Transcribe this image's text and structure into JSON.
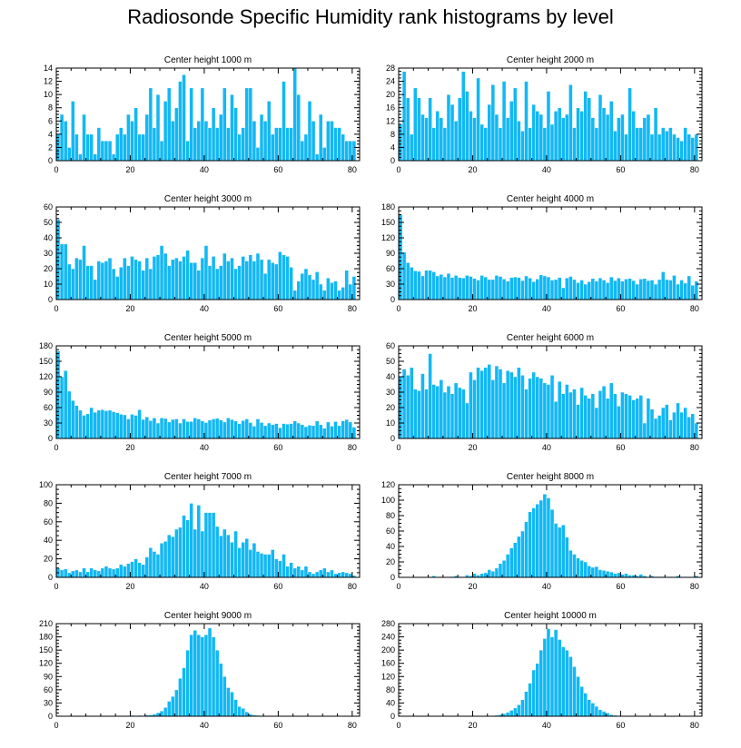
{
  "title": "Radiosonde Specific Humidity rank histograms by level",
  "colors": {
    "bar": "#12b8f4",
    "bar_edge": "#ffffff",
    "axis": "#000000"
  },
  "chart_data": [
    {
      "type": "bar",
      "title": "Center height 1000 m",
      "xlim": [
        0,
        82
      ],
      "ylim": [
        0,
        14
      ],
      "xticks": [
        0,
        20,
        40,
        60,
        80
      ],
      "yticks": [
        0,
        2,
        4,
        6,
        8,
        10,
        12,
        14
      ],
      "values": [
        4,
        7,
        6,
        2,
        9,
        4,
        1,
        7,
        4,
        4,
        1,
        5,
        3,
        3,
        3,
        1,
        4,
        5,
        4,
        7,
        6,
        8,
        4,
        4,
        7,
        11,
        5,
        10,
        3,
        9,
        11,
        6,
        8,
        12,
        13,
        3,
        11,
        5,
        6,
        11,
        6,
        5,
        8,
        5,
        7,
        11,
        5,
        10,
        8,
        4,
        5,
        11,
        11,
        6,
        2,
        7,
        6,
        9,
        4,
        5,
        5,
        12,
        5,
        5,
        14,
        10,
        3,
        4,
        9,
        6,
        1,
        7,
        2,
        6,
        6,
        5,
        5,
        4,
        3,
        3,
        3
      ]
    },
    {
      "type": "bar",
      "title": "Center height 2000 m",
      "xlim": [
        0,
        82
      ],
      "ylim": [
        0,
        28
      ],
      "xticks": [
        0,
        20,
        40,
        60,
        80
      ],
      "yticks": [
        0,
        4,
        8,
        12,
        16,
        20,
        24,
        28
      ],
      "values": [
        11,
        27,
        19,
        8,
        22,
        19,
        14,
        13,
        19,
        10,
        15,
        13,
        10,
        20,
        17,
        12,
        19,
        27,
        21,
        15,
        13,
        25,
        11,
        10,
        17,
        23,
        14,
        10,
        24,
        13,
        18,
        22,
        12,
        9,
        24,
        10,
        17,
        15,
        14,
        10,
        21,
        11,
        15,
        16,
        13,
        14,
        23,
        10,
        16,
        15,
        21,
        19,
        13,
        10,
        20,
        16,
        14,
        18,
        9,
        13,
        14,
        8,
        22,
        15,
        10,
        10,
        13,
        14,
        8,
        16,
        8,
        10,
        9,
        10,
        8,
        7,
        6,
        10,
        8,
        7,
        8
      ]
    },
    {
      "type": "bar",
      "title": "Center height 3000 m",
      "xlim": [
        0,
        82
      ],
      "ylim": [
        0,
        60
      ],
      "xticks": [
        0,
        20,
        40,
        60,
        80
      ],
      "yticks": [
        0,
        10,
        20,
        30,
        40,
        50,
        60
      ],
      "values": [
        52,
        36,
        36,
        23,
        20,
        27,
        26,
        35,
        22,
        22,
        13,
        25,
        24,
        25,
        27,
        20,
        15,
        21,
        27,
        22,
        28,
        26,
        25,
        19,
        27,
        20,
        28,
        29,
        35,
        30,
        22,
        26,
        27,
        25,
        28,
        32,
        24,
        24,
        19,
        27,
        35,
        22,
        28,
        20,
        22,
        30,
        25,
        27,
        20,
        22,
        28,
        25,
        29,
        25,
        30,
        26,
        17,
        26,
        24,
        23,
        31,
        29,
        28,
        21,
        6,
        12,
        17,
        20,
        16,
        13,
        18,
        10,
        6,
        14,
        11,
        12,
        6,
        8,
        19,
        10,
        15
      ]
    },
    {
      "type": "bar",
      "title": "Center height 4000 m",
      "xlim": [
        0,
        82
      ],
      "ylim": [
        0,
        180
      ],
      "xticks": [
        0,
        20,
        40,
        60,
        80
      ],
      "yticks": [
        0,
        30,
        60,
        90,
        120,
        150,
        180
      ],
      "values": [
        165,
        92,
        72,
        63,
        56,
        55,
        46,
        57,
        57,
        54,
        46,
        49,
        44,
        51,
        43,
        47,
        43,
        42,
        47,
        45,
        41,
        38,
        47,
        44,
        39,
        39,
        47,
        45,
        40,
        36,
        43,
        44,
        43,
        37,
        46,
        42,
        35,
        40,
        48,
        46,
        44,
        38,
        39,
        43,
        23,
        42,
        45,
        39,
        33,
        38,
        30,
        35,
        41,
        36,
        42,
        38,
        33,
        44,
        37,
        42,
        36,
        40,
        41,
        37,
        30,
        40,
        41,
        37,
        38,
        30,
        39,
        54,
        39,
        38,
        47,
        30,
        38,
        32,
        46,
        28,
        36
      ]
    },
    {
      "type": "bar",
      "title": "Center height 5000 m",
      "xlim": [
        0,
        82
      ],
      "ylim": [
        0,
        180
      ],
      "xticks": [
        0,
        20,
        40,
        60,
        80
      ],
      "yticks": [
        0,
        30,
        60,
        90,
        120,
        150,
        180
      ],
      "values": [
        170,
        120,
        132,
        92,
        74,
        64,
        55,
        45,
        48,
        60,
        51,
        55,
        56,
        54,
        55,
        52,
        50,
        47,
        46,
        38,
        47,
        45,
        56,
        37,
        42,
        35,
        40,
        30,
        40,
        39,
        32,
        37,
        38,
        30,
        38,
        33,
        33,
        40,
        38,
        34,
        31,
        36,
        38,
        39,
        36,
        32,
        40,
        37,
        34,
        29,
        35,
        38,
        31,
        24,
        38,
        31,
        25,
        30,
        27,
        29,
        21,
        29,
        28,
        29,
        34,
        30,
        27,
        23,
        26,
        25,
        34,
        27,
        20,
        32,
        24,
        33,
        25,
        34,
        37,
        32,
        22
      ]
    },
    {
      "type": "bar",
      "title": "Center height 6000 m",
      "xlim": [
        0,
        82
      ],
      "ylim": [
        0,
        60
      ],
      "xticks": [
        0,
        20,
        40,
        60,
        80
      ],
      "yticks": [
        0,
        10,
        20,
        30,
        40,
        50,
        60
      ],
      "values": [
        40,
        45,
        41,
        46,
        32,
        31,
        42,
        32,
        55,
        35,
        34,
        38,
        30,
        34,
        29,
        36,
        33,
        32,
        23,
        43,
        38,
        46,
        44,
        46,
        48,
        38,
        47,
        45,
        36,
        44,
        43,
        40,
        46,
        41,
        32,
        39,
        43,
        40,
        39,
        36,
        35,
        41,
        24,
        37,
        29,
        35,
        30,
        32,
        22,
        33,
        28,
        26,
        29,
        20,
        31,
        34,
        26,
        36,
        29,
        21,
        30,
        29,
        28,
        25,
        26,
        28,
        10,
        26,
        19,
        13,
        15,
        20,
        22,
        12,
        17,
        23,
        17,
        20,
        14,
        16,
        10
      ]
    },
    {
      "type": "bar",
      "title": "Center height 7000 m",
      "xlim": [
        0,
        82
      ],
      "ylim": [
        0,
        100
      ],
      "xticks": [
        0,
        20,
        40,
        60,
        80
      ],
      "yticks": [
        0,
        20,
        40,
        60,
        80,
        100
      ],
      "values": [
        10,
        8,
        9,
        5,
        7,
        8,
        6,
        10,
        6,
        10,
        8,
        7,
        10,
        12,
        10,
        9,
        10,
        14,
        12,
        15,
        17,
        20,
        16,
        14,
        22,
        32,
        28,
        25,
        37,
        39,
        46,
        44,
        52,
        54,
        67,
        62,
        80,
        52,
        78,
        50,
        70,
        70,
        70,
        55,
        45,
        52,
        46,
        38,
        50,
        32,
        38,
        42,
        30,
        37,
        28,
        26,
        25,
        25,
        30,
        20,
        18,
        25,
        12,
        16,
        10,
        12,
        8,
        12,
        6,
        4,
        6,
        8,
        10,
        6,
        8,
        4,
        5,
        6,
        5,
        4,
        2
      ]
    },
    {
      "type": "bar",
      "title": "Center height 8000 m",
      "xlim": [
        0,
        82
      ],
      "ylim": [
        0,
        120
      ],
      "xticks": [
        0,
        20,
        40,
        60,
        80
      ],
      "yticks": [
        0,
        20,
        40,
        60,
        80,
        100,
        120
      ],
      "values": [
        0,
        0,
        0,
        0,
        0,
        0,
        0,
        0,
        0,
        2,
        0,
        1,
        0,
        0,
        1,
        2,
        1,
        0,
        3,
        2,
        5,
        3,
        5,
        6,
        10,
        8,
        12,
        18,
        22,
        30,
        38,
        45,
        53,
        60,
        72,
        85,
        90,
        95,
        100,
        108,
        103,
        88,
        70,
        65,
        68,
        52,
        35,
        30,
        25,
        22,
        20,
        15,
        13,
        14,
        10,
        9,
        8,
        7,
        5,
        6,
        4,
        5,
        3,
        3,
        2,
        4,
        2,
        1,
        2,
        1,
        1,
        1,
        0,
        1,
        0,
        2,
        0,
        1,
        0,
        0,
        2
      ]
    },
    {
      "type": "bar",
      "title": "Center height 9000 m",
      "xlim": [
        0,
        82
      ],
      "ylim": [
        0,
        210
      ],
      "xticks": [
        0,
        20,
        40,
        60,
        80
      ],
      "yticks": [
        0,
        30,
        60,
        90,
        120,
        150,
        180,
        210
      ],
      "values": [
        0,
        0,
        0,
        0,
        0,
        0,
        0,
        0,
        0,
        0,
        0,
        0,
        0,
        0,
        0,
        0,
        0,
        0,
        0,
        0,
        2,
        0,
        2,
        0,
        3,
        3,
        5,
        8,
        12,
        20,
        34,
        45,
        60,
        86,
        110,
        150,
        185,
        195,
        185,
        180,
        185,
        200,
        180,
        150,
        120,
        90,
        65,
        55,
        38,
        22,
        18,
        10,
        5,
        3,
        2,
        1,
        0,
        0,
        0,
        0,
        0,
        0,
        0,
        0,
        0,
        0,
        0,
        0,
        0,
        0,
        0,
        0,
        0,
        0,
        0,
        0,
        0,
        0,
        0,
        0,
        0
      ]
    },
    {
      "type": "bar",
      "title": "Center height 10000 m",
      "xlim": [
        0,
        82
      ],
      "ylim": [
        0,
        280
      ],
      "xticks": [
        0,
        20,
        40,
        60,
        80
      ],
      "yticks": [
        0,
        40,
        80,
        120,
        160,
        200,
        240,
        280
      ],
      "values": [
        0,
        0,
        0,
        0,
        0,
        0,
        0,
        0,
        0,
        0,
        0,
        0,
        0,
        0,
        0,
        0,
        0,
        0,
        0,
        0,
        0,
        0,
        0,
        0,
        0,
        2,
        3,
        5,
        8,
        12,
        18,
        25,
        35,
        50,
        75,
        100,
        140,
        160,
        200,
        235,
        265,
        240,
        262,
        232,
        210,
        200,
        180,
        150,
        120,
        90,
        70,
        50,
        40,
        30,
        20,
        15,
        10,
        5,
        3,
        2,
        1,
        0,
        0,
        0,
        0,
        0,
        0,
        0,
        0,
        0,
        0,
        0,
        0,
        0,
        0,
        0,
        0,
        0,
        0,
        0,
        0
      ]
    }
  ]
}
